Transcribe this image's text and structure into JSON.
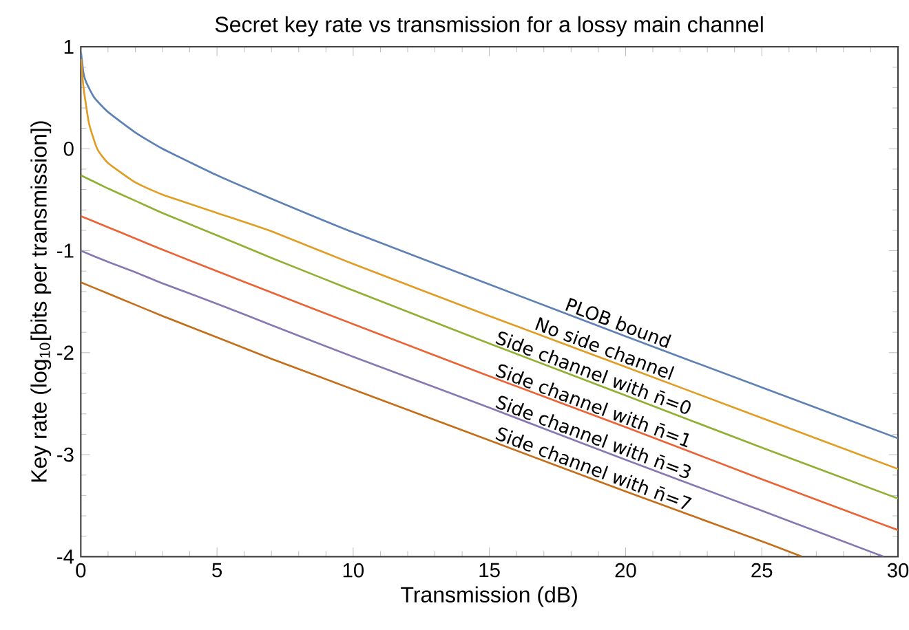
{
  "chart_data": {
    "type": "line",
    "title": "Secret key rate vs transmission for a lossy main channel",
    "xlabel": "Transmission (dB)",
    "ylabel": "Key rate (log$_{10}$[bits per transmission])",
    "xlim": [
      0,
      30
    ],
    "ylim": [
      -4,
      1
    ],
    "xticks": [
      0,
      5,
      10,
      15,
      20,
      25,
      30
    ],
    "yticks": [
      -4,
      -3,
      -2,
      -1,
      0,
      1
    ],
    "grid": false,
    "line_style": "solid",
    "series": [
      {
        "color": "#5e81b5",
        "x": [
          0.01,
          0.1,
          0.2,
          0.5,
          1,
          2,
          3,
          5,
          7,
          10,
          15,
          20,
          25,
          30
        ],
        "values": [
          0.94,
          0.74,
          0.65,
          0.5,
          0.36,
          0.16,
          0.0,
          -0.26,
          -0.49,
          -0.82,
          -1.33,
          -1.84,
          -2.34,
          -2.84
        ]
      },
      {
        "color": "#e19c24",
        "x": [
          0.01,
          0.1,
          0.3,
          0.6,
          1,
          2,
          3,
          5,
          7,
          10,
          15,
          20,
          25,
          30
        ],
        "values": [
          0.88,
          0.6,
          0.25,
          0.0,
          -0.14,
          -0.33,
          -0.45,
          -0.63,
          -0.81,
          -1.13,
          -1.64,
          -2.14,
          -2.64,
          -3.14
        ]
      },
      {
        "color": "#8fb032",
        "x": [
          0,
          1,
          2,
          3,
          5,
          7,
          10,
          15,
          20,
          25,
          30
        ],
        "values": [
          -0.26,
          -0.39,
          -0.51,
          -0.63,
          -0.85,
          -1.07,
          -1.39,
          -1.91,
          -2.42,
          -2.93,
          -3.43
        ]
      },
      {
        "color": "#eb6235",
        "x": [
          0,
          1,
          2,
          3,
          5,
          7,
          10,
          15,
          20,
          25,
          30
        ],
        "values": [
          -0.66,
          -0.77,
          -0.88,
          -0.99,
          -1.2,
          -1.41,
          -1.72,
          -2.23,
          -2.73,
          -3.24,
          -3.74
        ]
      },
      {
        "color": "#8778b3",
        "x": [
          0,
          1,
          2,
          3,
          5,
          7,
          10,
          15,
          20,
          25,
          29.47
        ],
        "values": [
          -1.0,
          -1.11,
          -1.21,
          -1.32,
          -1.52,
          -1.73,
          -2.04,
          -2.54,
          -3.05,
          -3.55,
          -4.0
        ]
      },
      {
        "color": "#c56e1a",
        "x": [
          0,
          1,
          2,
          3,
          5,
          7,
          10,
          15,
          20,
          25,
          26.47
        ],
        "values": [
          -1.31,
          -1.42,
          -1.53,
          -1.64,
          -1.85,
          -2.06,
          -2.36,
          -2.86,
          -3.36,
          -3.85,
          -4.0
        ]
      }
    ],
    "annotations": [
      {
        "text": "PLOB bound",
        "x": 19.6,
        "y": -1.8
      },
      {
        "text": "No side channel",
        "x": 19.1,
        "y": -2.05
      },
      {
        "text": "Side channel with n̄=0",
        "x": 18.7,
        "y": -2.29
      },
      {
        "text": "Side channel with n̄=1",
        "x": 18.7,
        "y": -2.61
      },
      {
        "text": "Side channel with n̄=3",
        "x": 18.7,
        "y": -2.92
      },
      {
        "text": "Side channel with n̄=7",
        "x": 18.7,
        "y": -3.23
      }
    ]
  }
}
